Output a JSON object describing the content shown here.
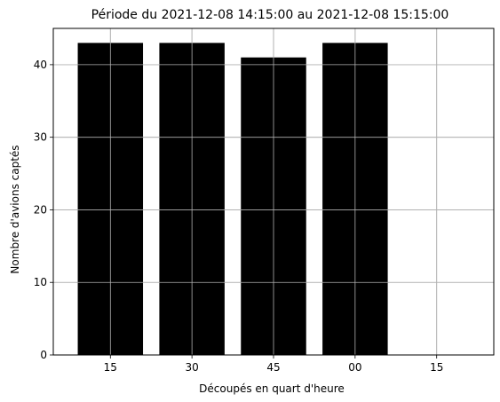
{
  "chart_data": {
    "type": "bar",
    "title": "Période du 2021-12-08 14:15:00 au 2021-12-08 15:15:00",
    "xlabel": "Découpés en quart d'heure",
    "ylabel": "Nombre d'avions captés",
    "categories": [
      "15",
      "30",
      "45",
      "00",
      "15"
    ],
    "values": [
      43,
      43,
      41,
      43,
      0
    ],
    "ylim": [
      0,
      45
    ],
    "yticks": [
      0,
      10,
      20,
      30,
      40
    ],
    "grid": true,
    "bar_color": "#000000",
    "grid_color": "#b0b0b0"
  }
}
